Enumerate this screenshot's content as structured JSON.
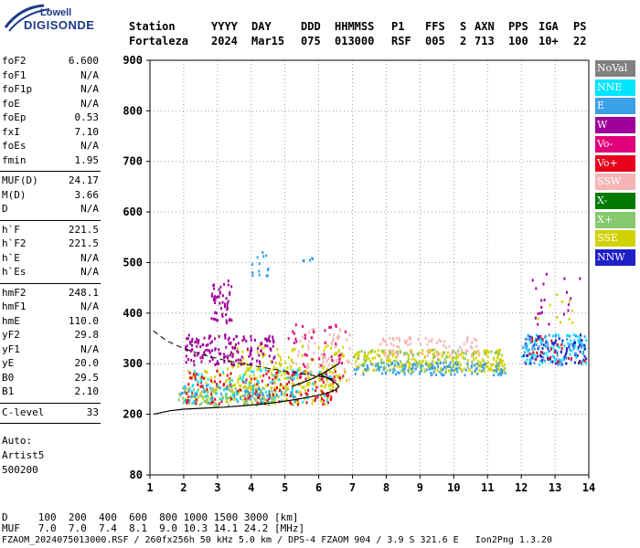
{
  "logo": {
    "top": "Lowell",
    "bottom": "DIGISONDE"
  },
  "header": {
    "labels": [
      "Station",
      "YYYY",
      "DAY",
      "DDD",
      "HHMMSS",
      "P1",
      "FFS",
      "S",
      "AXN",
      "PPS",
      "IGA",
      "PS"
    ],
    "values": [
      "Fortaleza",
      "2024",
      "Mar15",
      "075",
      "013000",
      "RSF",
      "005",
      "2",
      "713",
      "100",
      "10+",
      "22"
    ]
  },
  "params_group1": [
    {
      "k": "foF2",
      "v": "6.600"
    },
    {
      "k": "foF1",
      "v": "N/A"
    },
    {
      "k": "foF1p",
      "v": "N/A"
    },
    {
      "k": "foE",
      "v": "N/A"
    },
    {
      "k": "foEp",
      "v": "0.53"
    },
    {
      "k": "fxI",
      "v": "7.10"
    },
    {
      "k": "foEs",
      "v": "N/A"
    },
    {
      "k": "fmin",
      "v": "1.95"
    }
  ],
  "params_group2": [
    {
      "k": "MUF(D)",
      "v": "24.17"
    },
    {
      "k": "M(D)",
      "v": "3.66"
    },
    {
      "k": "D",
      "v": "N/A"
    }
  ],
  "params_group3": [
    {
      "k": "h`F",
      "v": "221.5"
    },
    {
      "k": "h`F2",
      "v": "221.5"
    },
    {
      "k": "h`E",
      "v": "N/A"
    },
    {
      "k": "h`Es",
      "v": "N/A"
    }
  ],
  "params_group4": [
    {
      "k": "hmF2",
      "v": "248.1"
    },
    {
      "k": "hmF1",
      "v": "N/A"
    },
    {
      "k": "hmE",
      "v": "110.0"
    },
    {
      "k": "yF2",
      "v": "29.8"
    },
    {
      "k": "yF1",
      "v": "N/A"
    },
    {
      "k": "yE",
      "v": "20.0"
    },
    {
      "k": "B0",
      "v": "29.5"
    },
    {
      "k": "B1",
      "v": "2.10"
    }
  ],
  "params_group5": [
    {
      "k": "C-level",
      "v": "33"
    }
  ],
  "notes": [
    "Auto:",
    "Artist5",
    "500200"
  ],
  "legend": [
    {
      "label": "NoVal",
      "color": "#808080"
    },
    {
      "label": "NNE",
      "color": "#00e5ff"
    },
    {
      "label": "E",
      "color": "#3aa0e8"
    },
    {
      "label": "W",
      "color": "#a0009a"
    },
    {
      "label": "Vo-",
      "color": "#e0007a"
    },
    {
      "label": "Vo+",
      "color": "#e8001c"
    },
    {
      "label": "SSW",
      "color": "#f7b4b4"
    },
    {
      "label": "X-",
      "color": "#007a00"
    },
    {
      "label": "X+",
      "color": "#86c86e"
    },
    {
      "label": "SSE",
      "color": "#d2d200"
    },
    {
      "label": "NNW",
      "color": "#2020c8"
    }
  ],
  "chart_data": {
    "type": "scatter",
    "xlabel": "",
    "ylabel": "",
    "xlim": [
      1,
      14
    ],
    "ylim": [
      80,
      900
    ],
    "x_ticks": [
      1,
      2,
      3,
      4,
      5,
      6,
      7,
      8,
      9,
      10,
      11,
      12,
      13,
      14
    ],
    "y_ticks": [
      80,
      200,
      300,
      400,
      500,
      600,
      700,
      800,
      900
    ],
    "grid": true,
    "legend_position": "right",
    "clusters": [
      {
        "name": "X+",
        "x": [
          1.8,
          5.3
        ],
        "y": [
          220,
          255
        ],
        "n": 160
      },
      {
        "name": "SSE",
        "x": [
          2.0,
          6.5
        ],
        "y": [
          222,
          300
        ],
        "n": 160
      },
      {
        "name": "Vo+",
        "x": [
          2.0,
          6.6
        ],
        "y": [
          222,
          290
        ],
        "n": 150
      },
      {
        "name": "E",
        "x": [
          1.9,
          5.5
        ],
        "y": [
          225,
          260
        ],
        "n": 60
      },
      {
        "name": "SSE",
        "x": [
          3.3,
          6.8
        ],
        "y": [
          255,
          340
        ],
        "n": 160
      },
      {
        "name": "SSW",
        "x": [
          5.2,
          6.9
        ],
        "y": [
          270,
          380
        ],
        "n": 70
      },
      {
        "name": "Vo-",
        "x": [
          5.0,
          6.8
        ],
        "y": [
          270,
          380
        ],
        "n": 50
      },
      {
        "name": "W",
        "x": [
          2.0,
          4.7
        ],
        "y": [
          300,
          360
        ],
        "n": 160
      },
      {
        "name": "W",
        "x": [
          2.8,
          3.4
        ],
        "y": [
          380,
          470
        ],
        "n": 50
      },
      {
        "name": "NNE",
        "x": [
          2.0,
          6.4
        ],
        "y": [
          225,
          290
        ],
        "n": 80
      },
      {
        "name": "SSE",
        "x": [
          7.0,
          11.5
        ],
        "y": [
          285,
          330
        ],
        "n": 260
      },
      {
        "name": "E",
        "x": [
          7.0,
          11.5
        ],
        "y": [
          280,
          305
        ],
        "n": 140
      },
      {
        "name": "SSW",
        "x": [
          7.8,
          10.8
        ],
        "y": [
          315,
          355
        ],
        "n": 90
      },
      {
        "name": "X+",
        "x": [
          7.0,
          11.5
        ],
        "y": [
          285,
          330
        ],
        "n": 80
      },
      {
        "name": "NNE",
        "x": [
          12.0,
          13.9
        ],
        "y": [
          300,
          360
        ],
        "n": 80
      },
      {
        "name": "NNW",
        "x": [
          12.0,
          13.9
        ],
        "y": [
          300,
          360
        ],
        "n": 70
      },
      {
        "name": "E",
        "x": [
          12.0,
          13.9
        ],
        "y": [
          300,
          360
        ],
        "n": 80
      },
      {
        "name": "Vo+",
        "x": [
          12.2,
          13.9
        ],
        "y": [
          300,
          360
        ],
        "n": 25
      },
      {
        "name": "W",
        "x": [
          12.3,
          13.9
        ],
        "y": [
          380,
          480
        ],
        "n": 20
      },
      {
        "name": "SSE",
        "x": [
          12.3,
          13.5
        ],
        "y": [
          370,
          440
        ],
        "n": 10
      },
      {
        "name": "E",
        "x": [
          4.0,
          4.5
        ],
        "y": [
          475,
          525
        ],
        "n": 14
      },
      {
        "name": "E",
        "x": [
          5.5,
          5.8
        ],
        "y": [
          505,
          512
        ],
        "n": 5
      }
    ],
    "profile_curve": {
      "x": [
        1.1,
        1.6,
        2.0,
        2.6,
        3.2,
        3.8,
        4.3,
        4.8,
        5.3,
        5.8,
        6.2,
        6.5,
        6.6,
        6.5,
        6.3,
        6.0
      ],
      "y": [
        200,
        207,
        210,
        212,
        214,
        217,
        220,
        224,
        229,
        235,
        241,
        248,
        255,
        262,
        270,
        280
      ]
    },
    "dashed_curve": {
      "x": [
        1.1,
        1.5,
        2.0,
        2.6,
        3.2,
        3.8,
        4.4,
        5.0,
        5.6,
        6.1,
        6.4
      ],
      "y": [
        365,
        345,
        330,
        317,
        307,
        299,
        292,
        285,
        279,
        274,
        270
      ]
    },
    "trace_curve": {
      "x": [
        5.2,
        5.5,
        5.8,
        6.1,
        6.3,
        6.5,
        6.6
      ],
      "y": [
        255,
        262,
        270,
        280,
        288,
        296,
        300
      ]
    }
  },
  "footer": {
    "line1": "D     100  200  400  600  800 1000 1500 3000 [km]",
    "line2": "MUF   7.0  7.0  7.4  8.1  9.0 10.3 14.1 24.2 [MHz]",
    "line3": "FZAOM_2024075013000.RSF / 260fx256h 50 kHz 5.0 km / DPS-4 FZAOM 904 / 3.9 S 321.6 E   Ion2Png 1.3.20"
  }
}
